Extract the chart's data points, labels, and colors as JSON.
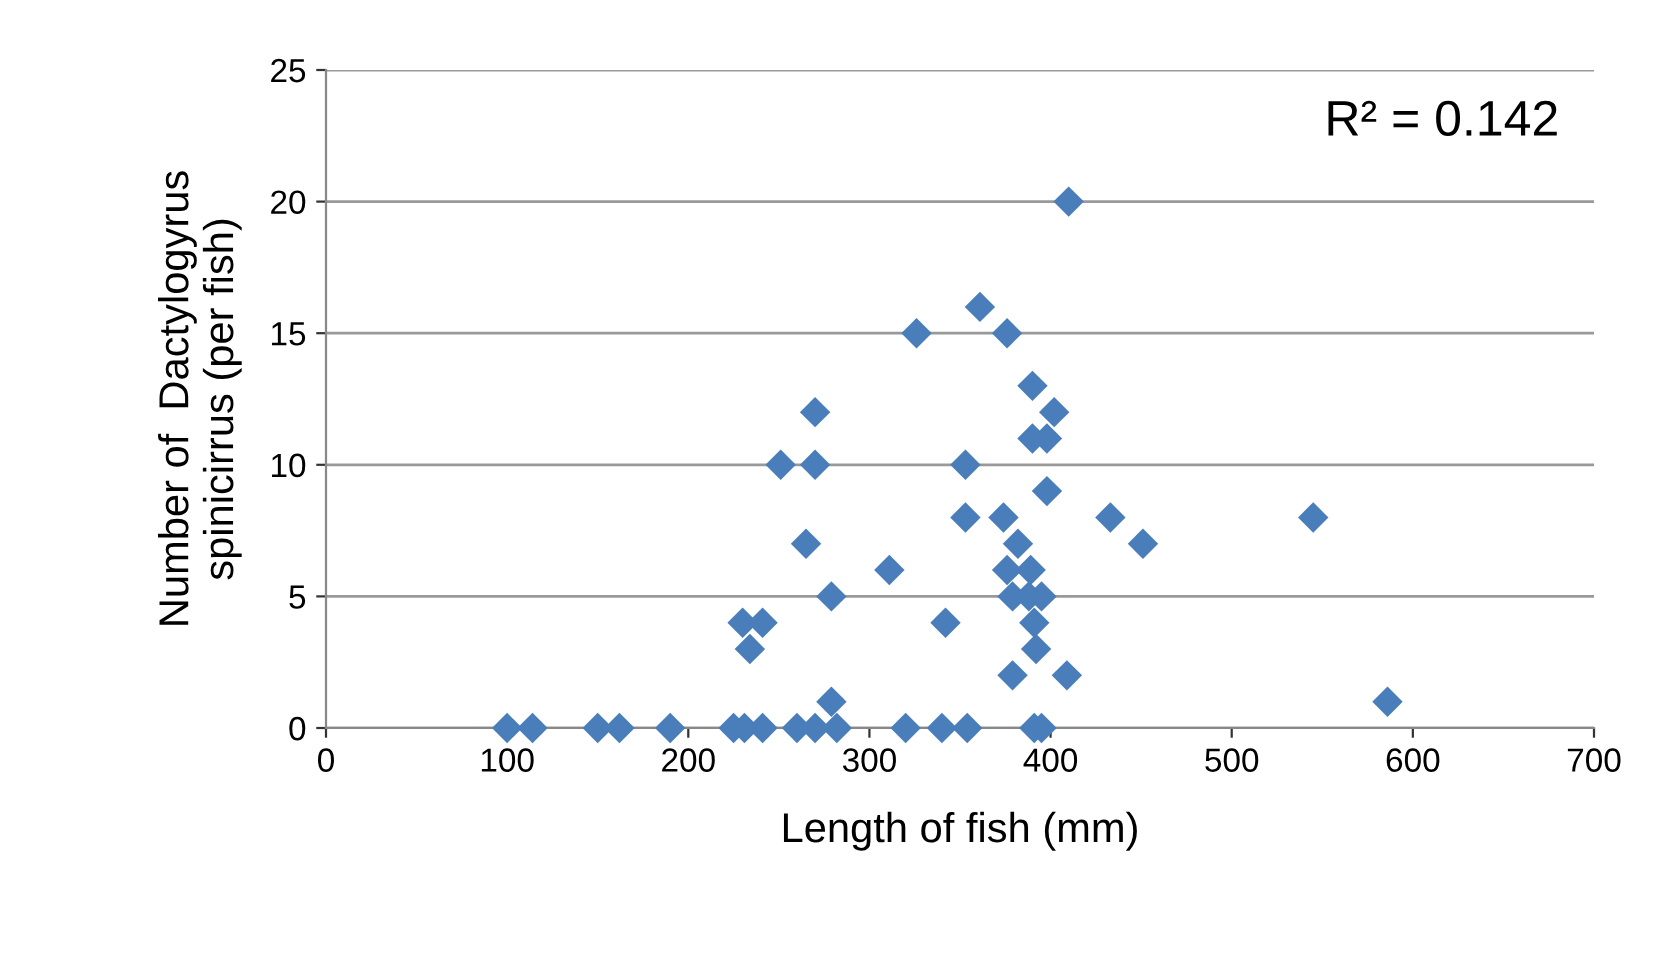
{
  "chart_data": {
    "type": "scatter",
    "xlabel": "Length of fish (mm)",
    "ylabel": "Number of  Dactylogyrus\nspinicirrus (per fish)",
    "annotations": [
      "R² = 0.142"
    ],
    "x": [
      100,
      114,
      150,
      162,
      190,
      225,
      231,
      241,
      260,
      270,
      282,
      320,
      340,
      354,
      391,
      395,
      230,
      234,
      241,
      251,
      265,
      270,
      270,
      279,
      279,
      311,
      326,
      342,
      353,
      353,
      361,
      374,
      376,
      382,
      376,
      379,
      379,
      388,
      389,
      391,
      392,
      390,
      402,
      390,
      398,
      398,
      395,
      409,
      410,
      433,
      451,
      545,
      586
    ],
    "values": [
      0,
      0,
      0,
      0,
      0,
      0,
      0,
      0,
      0,
      0,
      0,
      0,
      0,
      0,
      0,
      0,
      4,
      3,
      4,
      10,
      7,
      12,
      10,
      5,
      1,
      6,
      15,
      4,
      10,
      8,
      16,
      8,
      15,
      7,
      6,
      5,
      2,
      5,
      6,
      4,
      3,
      13,
      12,
      11,
      11,
      9,
      5,
      2,
      20,
      8,
      7,
      8,
      1
    ],
    "color": "#4a7ebb",
    "marker": "diamond",
    "xlim": [
      0,
      700
    ],
    "xticks": [
      0,
      100,
      200,
      300,
      400,
      500,
      600,
      700
    ],
    "ylim": [
      0,
      25
    ],
    "yticks": [
      0,
      5,
      10,
      15,
      20,
      25
    ],
    "grid": "y"
  }
}
